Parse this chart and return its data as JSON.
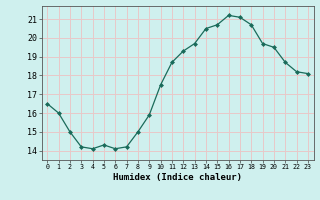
{
  "x": [
    0,
    1,
    2,
    3,
    4,
    5,
    6,
    7,
    8,
    9,
    10,
    11,
    12,
    13,
    14,
    15,
    16,
    17,
    18,
    19,
    20,
    21,
    22,
    23
  ],
  "y": [
    16.5,
    16.0,
    15.0,
    14.2,
    14.1,
    14.3,
    14.1,
    14.2,
    15.0,
    15.9,
    17.5,
    18.7,
    19.3,
    19.7,
    20.5,
    20.7,
    21.2,
    21.1,
    20.7,
    19.7,
    19.5,
    18.7,
    18.2,
    18.1
  ],
  "line_color": "#1a6b5a",
  "marker": "D",
  "markersize": 2.0,
  "linewidth": 0.9,
  "xlabel": "Humidex (Indice chaleur)",
  "ylim": [
    13.5,
    21.7
  ],
  "xlim": [
    -0.5,
    23.5
  ],
  "yticks": [
    14,
    15,
    16,
    17,
    18,
    19,
    20,
    21
  ],
  "xtick_labels": [
    "0",
    "1",
    "2",
    "3",
    "4",
    "5",
    "6",
    "7",
    "8",
    "9",
    "10",
    "11",
    "12",
    "13",
    "14",
    "15",
    "16",
    "17",
    "18",
    "19",
    "20",
    "21",
    "22",
    "23"
  ],
  "background_color": "#cff0ee",
  "grid_color": "#e8c8c8",
  "font_family": "monospace",
  "xlabel_fontsize": 6.5,
  "ytick_fontsize": 6.0,
  "xtick_fontsize": 4.8
}
